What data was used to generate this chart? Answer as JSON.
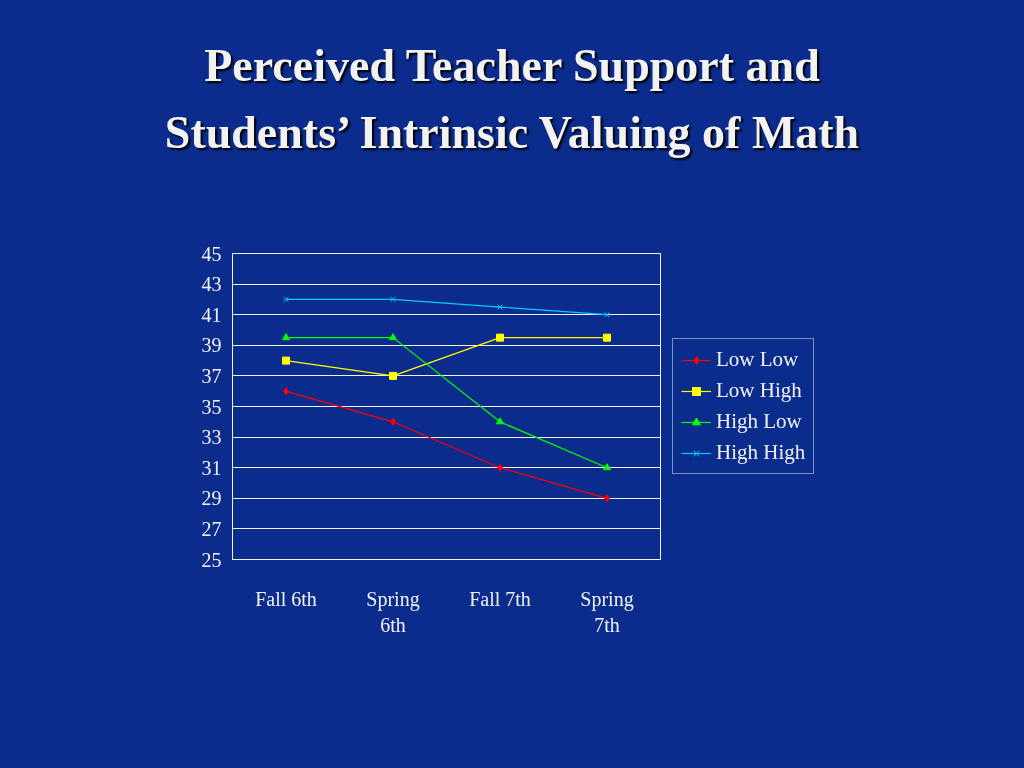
{
  "chart_data": {
    "type": "line",
    "title": "Perceived Teacher Support and Students’ Intrinsic Valuing of Math",
    "categories": [
      "Fall 6th",
      "Spring 6th",
      "Fall 7th",
      "Spring 7th"
    ],
    "series": [
      {
        "name": "Low Low",
        "color": "#ff0000",
        "marker": "diamond",
        "values": [
          36,
          34,
          31,
          29
        ]
      },
      {
        "name": "Low High",
        "color": "#ffff00",
        "marker": "square",
        "values": [
          38,
          37,
          39.5,
          39.5
        ]
      },
      {
        "name": "High Low",
        "color": "#00ff00",
        "marker": "triangle",
        "values": [
          39.5,
          39.5,
          34,
          31
        ]
      },
      {
        "name": "High High",
        "color": "#00ccff",
        "marker": "x",
        "values": [
          42,
          42,
          41.5,
          41
        ]
      }
    ],
    "ylim": [
      25,
      45
    ],
    "yticks": [
      25,
      27,
      29,
      31,
      33,
      35,
      37,
      39,
      41,
      43,
      45
    ],
    "grid": "y",
    "legend": "right",
    "line_style": "solid"
  }
}
